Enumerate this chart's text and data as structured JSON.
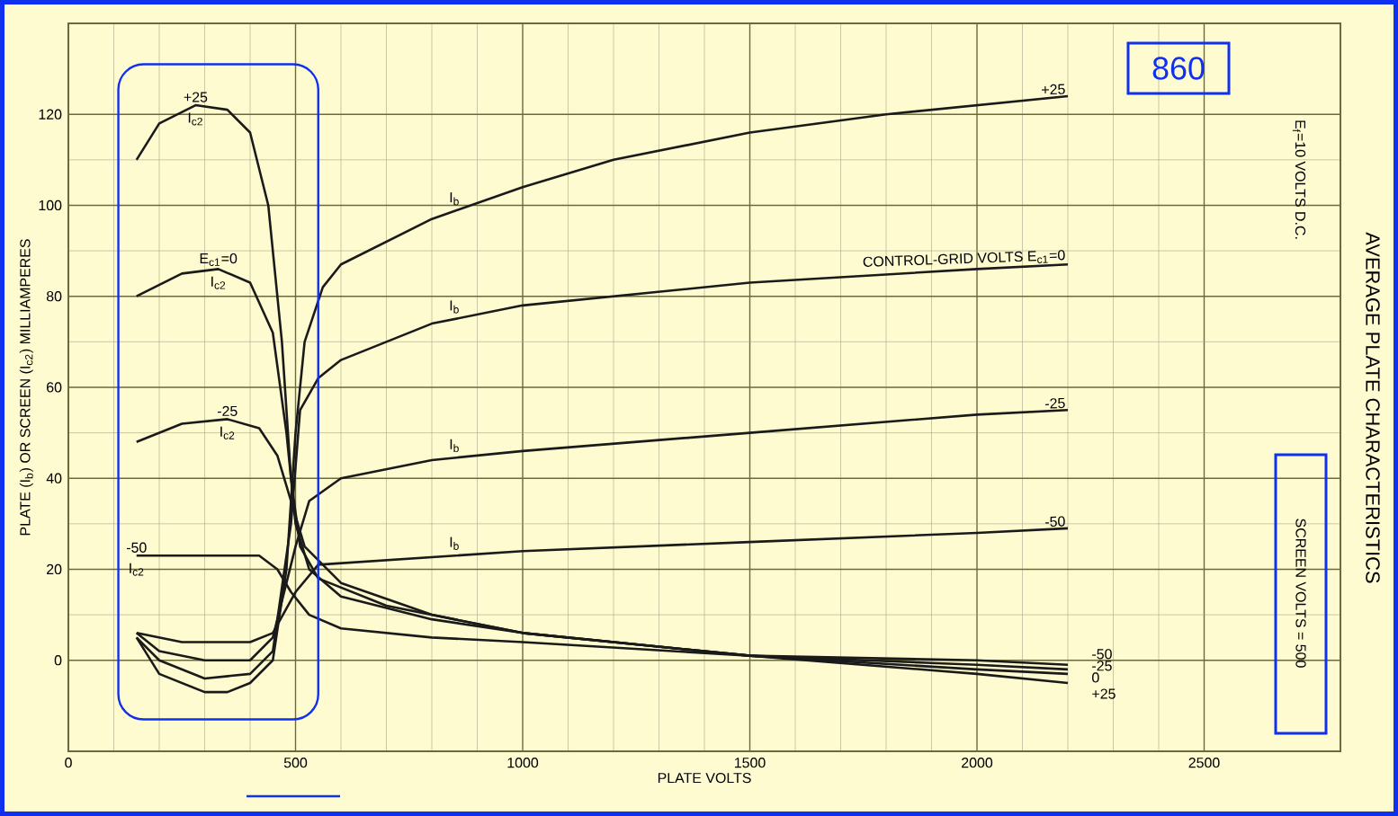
{
  "chart_data": {
    "type": "line",
    "title": "AVERAGE PLATE CHARACTERISTICS",
    "subtitle": "E$_{f}$=10 VOLTS D.C.",
    "xlabel": "PLATE VOLTS",
    "ylabel": "PLATE (I$_{b}$) OR SCREEN (I$_{c2}$) MILLIAMPERES",
    "xlim": [
      0,
      2800
    ],
    "ylim": [
      -20,
      140
    ],
    "xticks": [
      0,
      500,
      1000,
      1500,
      2000,
      2500
    ],
    "yticks": [
      0,
      20,
      40,
      60,
      80,
      100,
      120
    ],
    "grid": true,
    "series": [
      {
        "name": "+25",
        "color": "#1a1a1a",
        "x": [
          150,
          200,
          300,
          350,
          400,
          450,
          480,
          500,
          520,
          560,
          600,
          800,
          1000,
          1200,
          1500,
          1800,
          2000,
          2200
        ],
        "values": [
          5,
          -3,
          -7,
          -7,
          -5,
          0,
          20,
          50,
          70,
          82,
          87,
          97,
          104,
          110,
          116,
          120,
          122,
          124
        ]
      },
      {
        "name": "CONTROL-GRID VOLTS E$_{c1}$=0",
        "color": "#1a1a1a",
        "x": [
          150,
          200,
          300,
          400,
          450,
          490,
          510,
          550,
          600,
          800,
          1000,
          1500,
          2000,
          2200
        ],
        "values": [
          5,
          0,
          -4,
          -3,
          2,
          30,
          55,
          62,
          66,
          74,
          78,
          83,
          86,
          87
        ]
      },
      {
        "name": "-25",
        "color": "#1a1a1a",
        "x": [
          150,
          200,
          300,
          400,
          450,
          500,
          530,
          600,
          800,
          1000,
          1500,
          2000,
          2200
        ],
        "values": [
          6,
          2,
          0,
          0,
          5,
          25,
          35,
          40,
          44,
          46,
          50,
          54,
          55
        ]
      },
      {
        "name": "-50",
        "color": "#1a1a1a",
        "x": [
          150,
          250,
          400,
          450,
          500,
          550,
          700,
          1000,
          1500,
          2000,
          2200
        ],
        "values": [
          6,
          4,
          4,
          6,
          15,
          21,
          22,
          24,
          26,
          28,
          29
        ]
      },
      {
        "name": "+25",
        "color": "#1a1a1a",
        "x": [
          150,
          200,
          280,
          350,
          400,
          440,
          470,
          490,
          510,
          550,
          700,
          1000,
          1500,
          2000,
          2200
        ],
        "values": [
          110,
          118,
          122,
          121,
          116,
          100,
          70,
          40,
          25,
          18,
          12,
          6,
          1,
          -3,
          -5
        ]
      },
      {
        "name": "E$_{c1}$=0",
        "color": "#1a1a1a",
        "x": [
          150,
          250,
          330,
          400,
          450,
          480,
          500,
          530,
          600,
          800,
          1000,
          1500,
          2000,
          2200
        ],
        "values": [
          80,
          85,
          86,
          83,
          72,
          50,
          30,
          20,
          14,
          9,
          6,
          1,
          -2,
          -3
        ]
      },
      {
        "name": "-25",
        "color": "#1a1a1a",
        "x": [
          150,
          250,
          350,
          420,
          460,
          490,
          520,
          600,
          800,
          1000,
          1500,
          2000,
          2200
        ],
        "values": [
          48,
          52,
          53,
          51,
          45,
          35,
          25,
          17,
          10,
          6,
          1,
          -1,
          -2
        ]
      },
      {
        "name": "-50",
        "color": "#1a1a1a",
        "x": [
          150,
          300,
          420,
          460,
          490,
          530,
          600,
          800,
          1000,
          1500,
          2000,
          2200
        ],
        "values": [
          23,
          23,
          23,
          20,
          15,
          10,
          7,
          5,
          4,
          1,
          0,
          -1
        ]
      }
    ],
    "annotations": [
      "860",
      "SCREEN VOLTS = 500",
      "I$_{b}$",
      "I$_{b}$",
      "I$_{b}$",
      "I$_{b}$",
      "I$_{c2}$",
      "I$_{c2}$",
      "I$_{c2}$",
      "I$_{c2}$",
      "-50",
      "-25",
      "0",
      "+25"
    ]
  }
}
